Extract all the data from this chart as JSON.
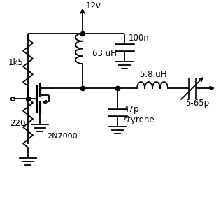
{
  "bg_color": "#ffffff",
  "line_color": "#000000",
  "labels": {
    "vcc": "12v",
    "cap1": "100n",
    "ind1": "63 uH",
    "ind2": "5.8 uH",
    "cap2": "47p\nstyrene",
    "cap3": "5-65p",
    "r1": "1k5",
    "r2": "220",
    "transistor": "2N7000"
  },
  "figsize": [
    3.19,
    3.06
  ],
  "dpi": 100
}
